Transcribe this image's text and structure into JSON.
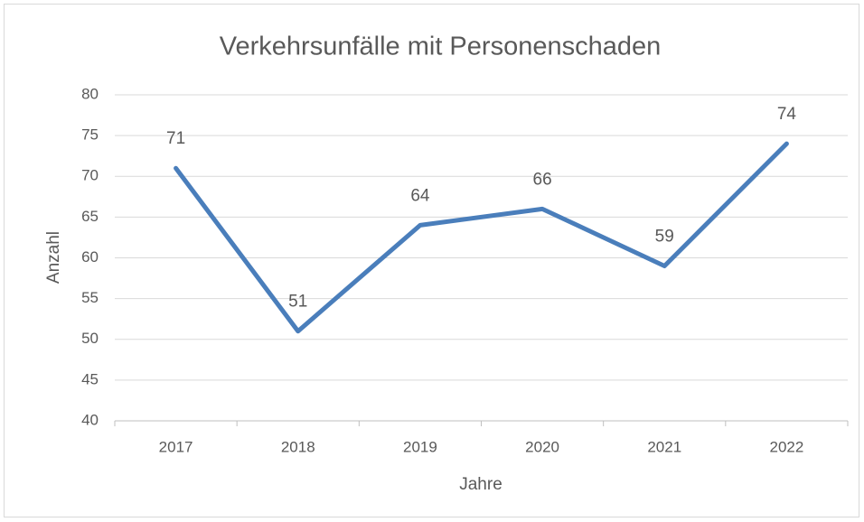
{
  "chart_data": {
    "type": "line",
    "title": "Verkehrsunfälle mit Personenschaden",
    "categories": [
      "2017",
      "2018",
      "2019",
      "2020",
      "2021",
      "2022"
    ],
    "series": [
      {
        "name": "Anzahl",
        "color": "#4a7ebb",
        "values": [
          71,
          51,
          64,
          66,
          59,
          74
        ]
      }
    ],
    "xlabel": "Jahre",
    "ylabel": "Anzahl",
    "ylim": [
      40,
      80
    ],
    "yticks": [
      40,
      45,
      50,
      55,
      60,
      65,
      70,
      75,
      80
    ],
    "grid": true
  }
}
